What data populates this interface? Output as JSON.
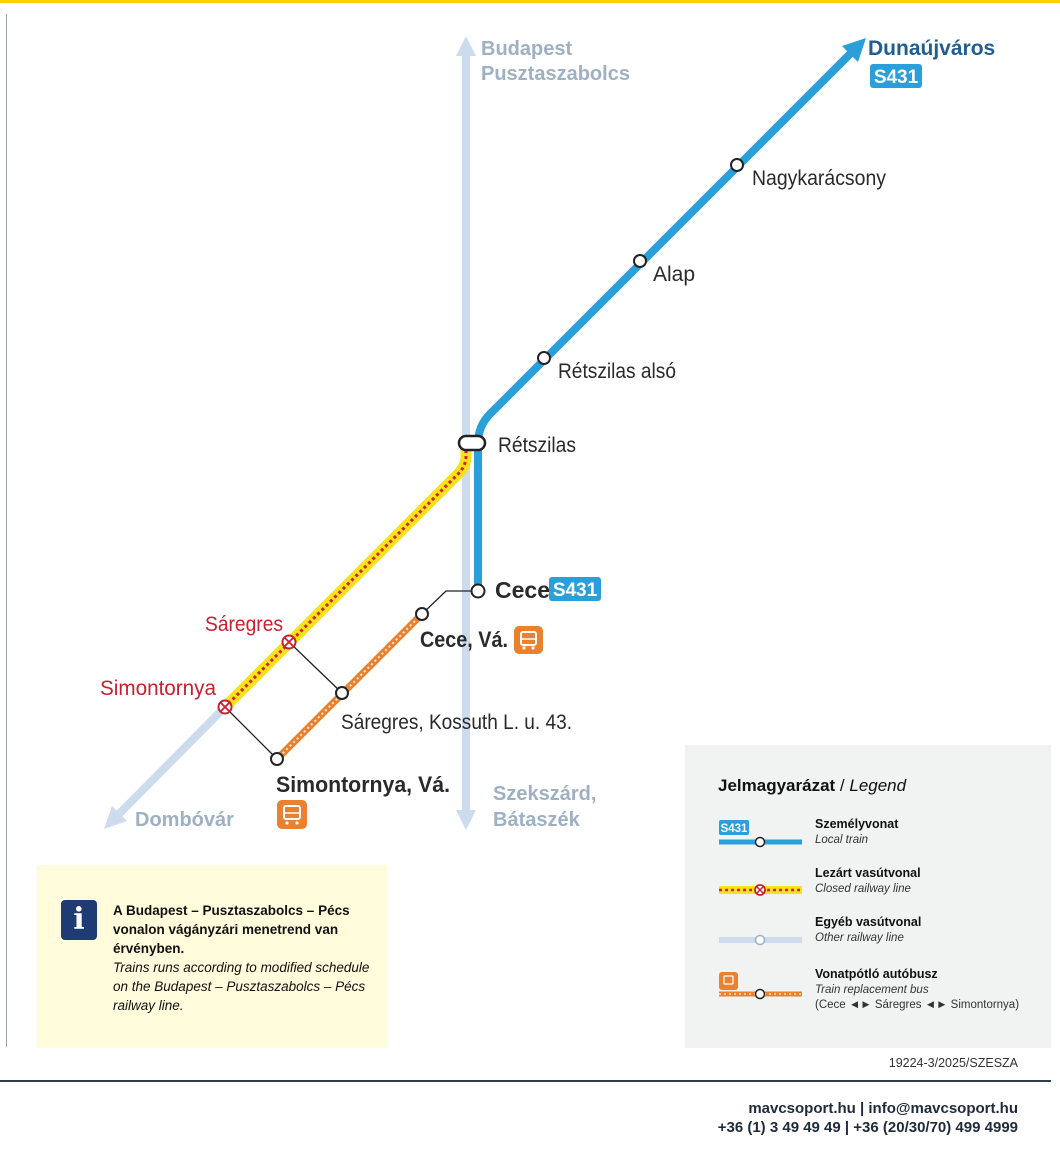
{
  "colors": {
    "local_train": "#2b9fd9",
    "other_railway": "#ccdcec",
    "closed_highlight": "#f7e21b",
    "closed_dash": "#d9202b",
    "replacement_bus": "#e9812e",
    "closed_label": "#c8202f",
    "other_label": "#9eb0c2",
    "station_text": "#2a2a2a"
  },
  "destinations": {
    "north_line1": "Budapest",
    "north_line2": "Pusztaszabolcs",
    "ne_name": "Dunaújváros",
    "ne_badge": "S431",
    "south_line1": "Szekszárd,",
    "south_line2": "Bátaszék",
    "sw_name": "Dombóvár"
  },
  "stations": {
    "nagykaracsony": "Nagykarácsony",
    "alap": "Alap",
    "retszilas_also": "Rétszilas alsó",
    "retszilas": "Rétszilas",
    "cece": "Cece",
    "cece_badge": "S431",
    "saregres": "Sáregres",
    "simontornya": "Simontornya"
  },
  "bus_stops": {
    "cece_va": "Cece, Vá.",
    "saregres_kossuth": "Sáregres, Kossuth L. u. 43.",
    "simontornya_va": "Simontornya, Vá."
  },
  "icons": {
    "bus": "bus-icon",
    "info": "info-icon",
    "closed_station": "closed-station-icon"
  },
  "info": {
    "icon_glyph": "i",
    "text_hu": "A Budapest – Pusztaszabolcs – Pécs vonalon vágányzári menetrend van érvényben.",
    "text_en": "Trains runs according to modified schedule on the Budapest – Pusztaszabolcs – Pécs railway line."
  },
  "legend": {
    "title_hu": "Jelmagyarázat",
    "separator": " / ",
    "title_en": "Legend",
    "items": [
      {
        "badge": "S431",
        "main": "Személyvonat",
        "sub": "Local train"
      },
      {
        "main": "Lezárt vasútvonal",
        "sub": "Closed railway line"
      },
      {
        "main": "Egyéb vasútvonal",
        "sub": "Other railway line"
      },
      {
        "main": "Vonatpótló autóbusz",
        "sub": "Train replacement bus",
        "note": "(Cece ◄► Sáregres ◄► Simontornya)"
      }
    ]
  },
  "doc_id": "19224-3/2025/SZESZA",
  "footer": {
    "line1": "mavcsoport.hu | info@mavcsoport.hu",
    "line2": "+36 (1) 3 49 49 49 | +36 (20/30/70) 499 4999"
  }
}
